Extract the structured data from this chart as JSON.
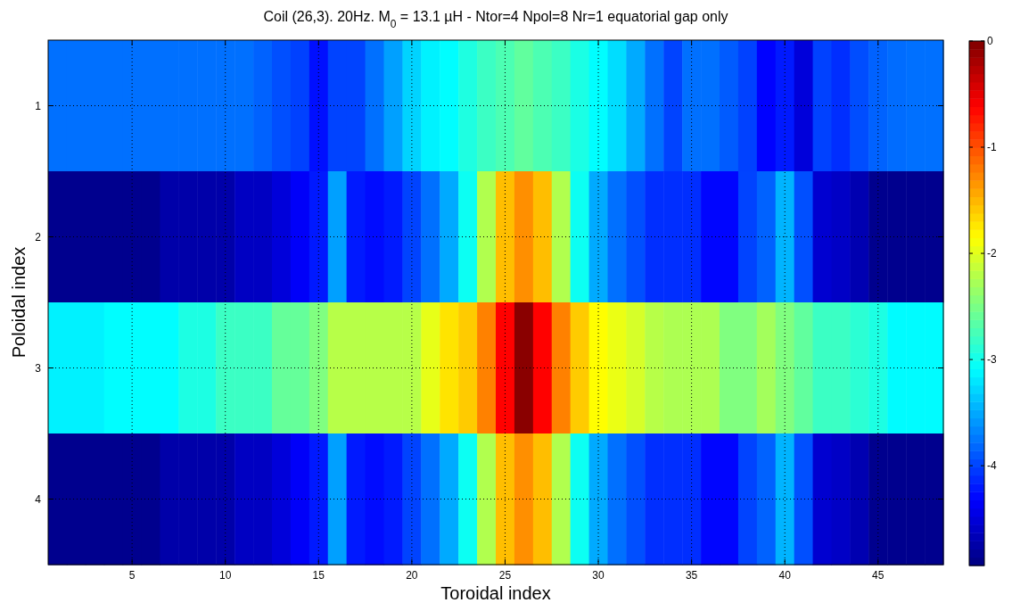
{
  "chart_data": {
    "type": "heatmap",
    "title": "Coil (26,3). 20Hz. M$_{0}$ = 13.1 µH  -  Ntor=4 Npol=8 Nr=1 equatorial gap only",
    "xlabel": "Toroidal index",
    "ylabel": "Poloidal index",
    "categories": [
      null,
      null,
      null,
      null,
      "5",
      null,
      null,
      null,
      null,
      "10",
      null,
      null,
      null,
      null,
      "15",
      null,
      null,
      null,
      null,
      "20",
      null,
      null,
      null,
      null,
      "25",
      null,
      null,
      null,
      null,
      "30",
      null,
      null,
      null,
      null,
      "35",
      null,
      null,
      null,
      null,
      "40",
      null,
      null,
      null,
      null,
      "45",
      null,
      null,
      null
    ],
    "y_categories": [
      "1",
      "2",
      "3",
      "4"
    ],
    "cells": [
      [
        -3.78,
        -3.78,
        -3.78,
        -3.78,
        -3.78,
        -3.78,
        -3.78,
        -3.78,
        -3.78,
        -3.78,
        -3.78,
        -3.85,
        -3.94,
        -4.01,
        -4.25,
        -4.0,
        -4.0,
        -3.78,
        -3.55,
        -3.3,
        -3.15,
        -3.09,
        -2.94,
        -2.8,
        -2.72,
        -2.62,
        -2.72,
        -2.8,
        -2.96,
        -3.09,
        -3.25,
        -3.5,
        -3.78,
        -4.0,
        -3.78,
        -3.78,
        -3.88,
        -4.01,
        -4.32,
        -4.2,
        -4.5,
        -4.01,
        -4.1,
        -3.95,
        -3.85,
        -3.8,
        -3.78,
        -3.78
      ],
      [
        -4.87,
        -4.87,
        -4.87,
        -4.87,
        -4.87,
        -4.87,
        -4.74,
        -4.74,
        -4.74,
        -4.74,
        -4.62,
        -4.62,
        -4.5,
        -4.35,
        -4.2,
        -3.55,
        -4.2,
        -4.27,
        -4.2,
        -4.0,
        -3.78,
        -3.5,
        -3.03,
        -2.23,
        -1.54,
        -1.31,
        -1.54,
        -2.23,
        -3.03,
        -3.5,
        -3.78,
        -3.94,
        -4.1,
        -4.1,
        -4.1,
        -4.3,
        -4.3,
        -4.0,
        -3.85,
        -3.45,
        -3.94,
        -4.55,
        -4.6,
        -4.7,
        -4.87,
        -4.87,
        -4.87,
        -4.87
      ],
      [
        -3.15,
        -3.15,
        -3.15,
        -3.09,
        -3.09,
        -3.09,
        -3.09,
        -2.95,
        -2.95,
        -2.8,
        -2.8,
        -2.8,
        -2.6,
        -2.6,
        -2.47,
        -2.2,
        -2.2,
        -2.2,
        -2.2,
        -2.2,
        -1.97,
        -1.72,
        -1.6,
        -1.24,
        -0.62,
        -0.05,
        -0.62,
        -1.24,
        -1.6,
        -1.85,
        -1.95,
        -2.05,
        -2.2,
        -2.25,
        -2.25,
        -2.25,
        -2.47,
        -2.47,
        -2.3,
        -2.47,
        -2.62,
        -2.8,
        -2.8,
        -2.88,
        -2.95,
        -3.1,
        -3.1,
        -3.1
      ],
      [
        -4.87,
        -4.87,
        -4.87,
        -4.87,
        -4.87,
        -4.87,
        -4.74,
        -4.74,
        -4.74,
        -4.74,
        -4.62,
        -4.62,
        -4.5,
        -4.35,
        -4.2,
        -3.55,
        -4.2,
        -4.27,
        -4.2,
        -4.0,
        -3.78,
        -3.5,
        -3.03,
        -2.23,
        -1.54,
        -1.31,
        -1.54,
        -2.23,
        -3.03,
        -3.5,
        -3.78,
        -3.94,
        -4.1,
        -4.1,
        -4.1,
        -4.3,
        -4.3,
        -4.0,
        -3.85,
        -3.45,
        -3.94,
        -4.55,
        -4.6,
        -4.7,
        -4.87,
        -4.87,
        -4.87,
        -4.87
      ]
    ],
    "clim": [
      -4.94,
      0
    ],
    "cticks": [
      -4,
      -3,
      -2,
      -1,
      0
    ],
    "grid": true
  }
}
